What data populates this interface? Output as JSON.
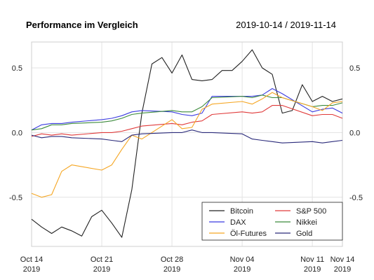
{
  "chart_data": {
    "type": "line",
    "title": "Performance im Vergleich",
    "date_range": "2019-10-14 / 2019-11-14",
    "x_ticks": [
      {
        "date": "2019-10-14",
        "label_top": "Oct 14",
        "label_bottom": "2019"
      },
      {
        "date": "2019-10-21",
        "label_top": "Oct 21",
        "label_bottom": "2019"
      },
      {
        "date": "2019-10-28",
        "label_top": "Oct 28",
        "label_bottom": "2019"
      },
      {
        "date": "2019-11-04",
        "label_top": "Nov 04",
        "label_bottom": "2019"
      },
      {
        "date": "2019-11-11",
        "label_top": "Nov 11",
        "label_bottom": "2019"
      },
      {
        "date": "2019-11-14",
        "label_top": "Nov 14",
        "label_bottom": "2019"
      }
    ],
    "xlim": [
      "2019-10-14",
      "2019-11-14"
    ],
    "ylim": [
      -0.88,
      0.7
    ],
    "y_ticks": [
      -0.5,
      0.0,
      0.5
    ],
    "y_tick_labels": [
      "-0.5",
      "0.0",
      "0.5"
    ],
    "grid": true,
    "legend_position": "bottom-right",
    "legend_columns": 2,
    "series": [
      {
        "name": "Bitcoin",
        "color": "#222222",
        "x": [
          "2019-10-14",
          "2019-10-15",
          "2019-10-16",
          "2019-10-17",
          "2019-10-18",
          "2019-10-19",
          "2019-10-20",
          "2019-10-21",
          "2019-10-22",
          "2019-10-23",
          "2019-10-24",
          "2019-10-25",
          "2019-10-26",
          "2019-10-27",
          "2019-10-28",
          "2019-10-29",
          "2019-10-30",
          "2019-10-31",
          "2019-11-01",
          "2019-11-02",
          "2019-11-03",
          "2019-11-04",
          "2019-11-05",
          "2019-11-06",
          "2019-11-07",
          "2019-11-08",
          "2019-11-09",
          "2019-11-10",
          "2019-11-11",
          "2019-11-12",
          "2019-11-13",
          "2019-11-14"
        ],
        "values": [
          -0.67,
          -0.73,
          -0.78,
          -0.73,
          -0.76,
          -0.8,
          -0.65,
          -0.6,
          -0.7,
          -0.81,
          -0.44,
          0.15,
          0.53,
          0.58,
          0.46,
          0.6,
          0.41,
          0.4,
          0.41,
          0.48,
          0.48,
          0.55,
          0.64,
          0.5,
          0.45,
          0.15,
          0.17,
          0.37,
          0.24,
          0.28,
          0.24,
          0.26
        ]
      },
      {
        "name": "S&P 500",
        "color": "#e03a3a",
        "x": [
          "2019-10-14",
          "2019-10-15",
          "2019-10-16",
          "2019-10-17",
          "2019-10-18",
          "2019-10-21",
          "2019-10-22",
          "2019-10-23",
          "2019-10-24",
          "2019-10-25",
          "2019-10-28",
          "2019-10-29",
          "2019-10-30",
          "2019-10-31",
          "2019-11-01",
          "2019-11-04",
          "2019-11-05",
          "2019-11-06",
          "2019-11-07",
          "2019-11-08",
          "2019-11-11",
          "2019-11-12",
          "2019-11-13",
          "2019-11-14"
        ],
        "values": [
          -0.03,
          -0.01,
          -0.02,
          -0.01,
          -0.02,
          0.0,
          0.0,
          0.01,
          0.03,
          0.05,
          0.07,
          0.06,
          0.08,
          0.09,
          0.14,
          0.16,
          0.15,
          0.16,
          0.21,
          0.21,
          0.13,
          0.14,
          0.14,
          0.11
        ]
      },
      {
        "name": "DAX",
        "color": "#3b3be0",
        "x": [
          "2019-10-14",
          "2019-10-15",
          "2019-10-16",
          "2019-10-17",
          "2019-10-18",
          "2019-10-21",
          "2019-10-22",
          "2019-10-23",
          "2019-10-24",
          "2019-10-25",
          "2019-10-28",
          "2019-10-29",
          "2019-10-30",
          "2019-10-31",
          "2019-11-01",
          "2019-11-04",
          "2019-11-05",
          "2019-11-06",
          "2019-11-07",
          "2019-11-08",
          "2019-11-11",
          "2019-11-12",
          "2019-11-13",
          "2019-11-14"
        ],
        "values": [
          0.02,
          0.06,
          0.07,
          0.07,
          0.08,
          0.1,
          0.11,
          0.13,
          0.16,
          0.17,
          0.16,
          0.14,
          0.13,
          0.15,
          0.28,
          0.28,
          0.28,
          0.29,
          0.34,
          0.3,
          0.16,
          0.18,
          0.19,
          0.15
        ]
      },
      {
        "name": "Nikkei",
        "color": "#3c8a3c",
        "x": [
          "2019-10-14",
          "2019-10-15",
          "2019-10-16",
          "2019-10-17",
          "2019-10-18",
          "2019-10-21",
          "2019-10-22",
          "2019-10-23",
          "2019-10-24",
          "2019-10-25",
          "2019-10-28",
          "2019-10-29",
          "2019-10-30",
          "2019-10-31",
          "2019-11-01",
          "2019-11-04",
          "2019-11-05",
          "2019-11-06",
          "2019-11-07",
          "2019-11-08",
          "2019-11-11",
          "2019-11-12",
          "2019-11-13",
          "2019-11-14"
        ],
        "values": [
          0.02,
          0.03,
          0.06,
          0.06,
          0.07,
          0.08,
          0.09,
          0.11,
          0.14,
          0.15,
          0.17,
          0.16,
          0.16,
          0.2,
          0.27,
          0.28,
          0.27,
          0.29,
          0.27,
          0.27,
          0.2,
          0.21,
          0.21,
          0.23
        ]
      },
      {
        "name": "Öl-Futures",
        "color": "#f5a623",
        "x": [
          "2019-10-14",
          "2019-10-15",
          "2019-10-16",
          "2019-10-17",
          "2019-10-18",
          "2019-10-21",
          "2019-10-22",
          "2019-10-23",
          "2019-10-24",
          "2019-10-25",
          "2019-10-28",
          "2019-10-29",
          "2019-10-30",
          "2019-10-31",
          "2019-11-01",
          "2019-11-04",
          "2019-11-05",
          "2019-11-06",
          "2019-11-07",
          "2019-11-08",
          "2019-11-11",
          "2019-11-12",
          "2019-11-13",
          "2019-11-14"
        ],
        "values": [
          -0.47,
          -0.5,
          -0.48,
          -0.3,
          -0.25,
          -0.29,
          -0.25,
          -0.13,
          -0.02,
          -0.05,
          0.1,
          0.03,
          0.04,
          0.18,
          0.22,
          0.24,
          0.22,
          0.26,
          0.31,
          0.27,
          0.2,
          0.17,
          0.23,
          0.24
        ]
      },
      {
        "name": "Gold",
        "color": "#2a2a7a",
        "x": [
          "2019-10-14",
          "2019-10-15",
          "2019-10-16",
          "2019-10-17",
          "2019-10-18",
          "2019-10-21",
          "2019-10-22",
          "2019-10-23",
          "2019-10-24",
          "2019-10-25",
          "2019-10-28",
          "2019-10-29",
          "2019-10-30",
          "2019-10-31",
          "2019-11-01",
          "2019-11-04",
          "2019-11-05",
          "2019-11-06",
          "2019-11-07",
          "2019-11-08",
          "2019-11-11",
          "2019-11-12",
          "2019-11-13",
          "2019-11-14"
        ],
        "values": [
          -0.02,
          -0.04,
          -0.03,
          -0.03,
          -0.04,
          -0.05,
          -0.06,
          -0.07,
          -0.02,
          -0.01,
          0.0,
          0.0,
          0.02,
          0.0,
          0.0,
          -0.01,
          -0.05,
          -0.06,
          -0.07,
          -0.08,
          -0.07,
          -0.08,
          -0.07,
          -0.06
        ]
      }
    ]
  }
}
